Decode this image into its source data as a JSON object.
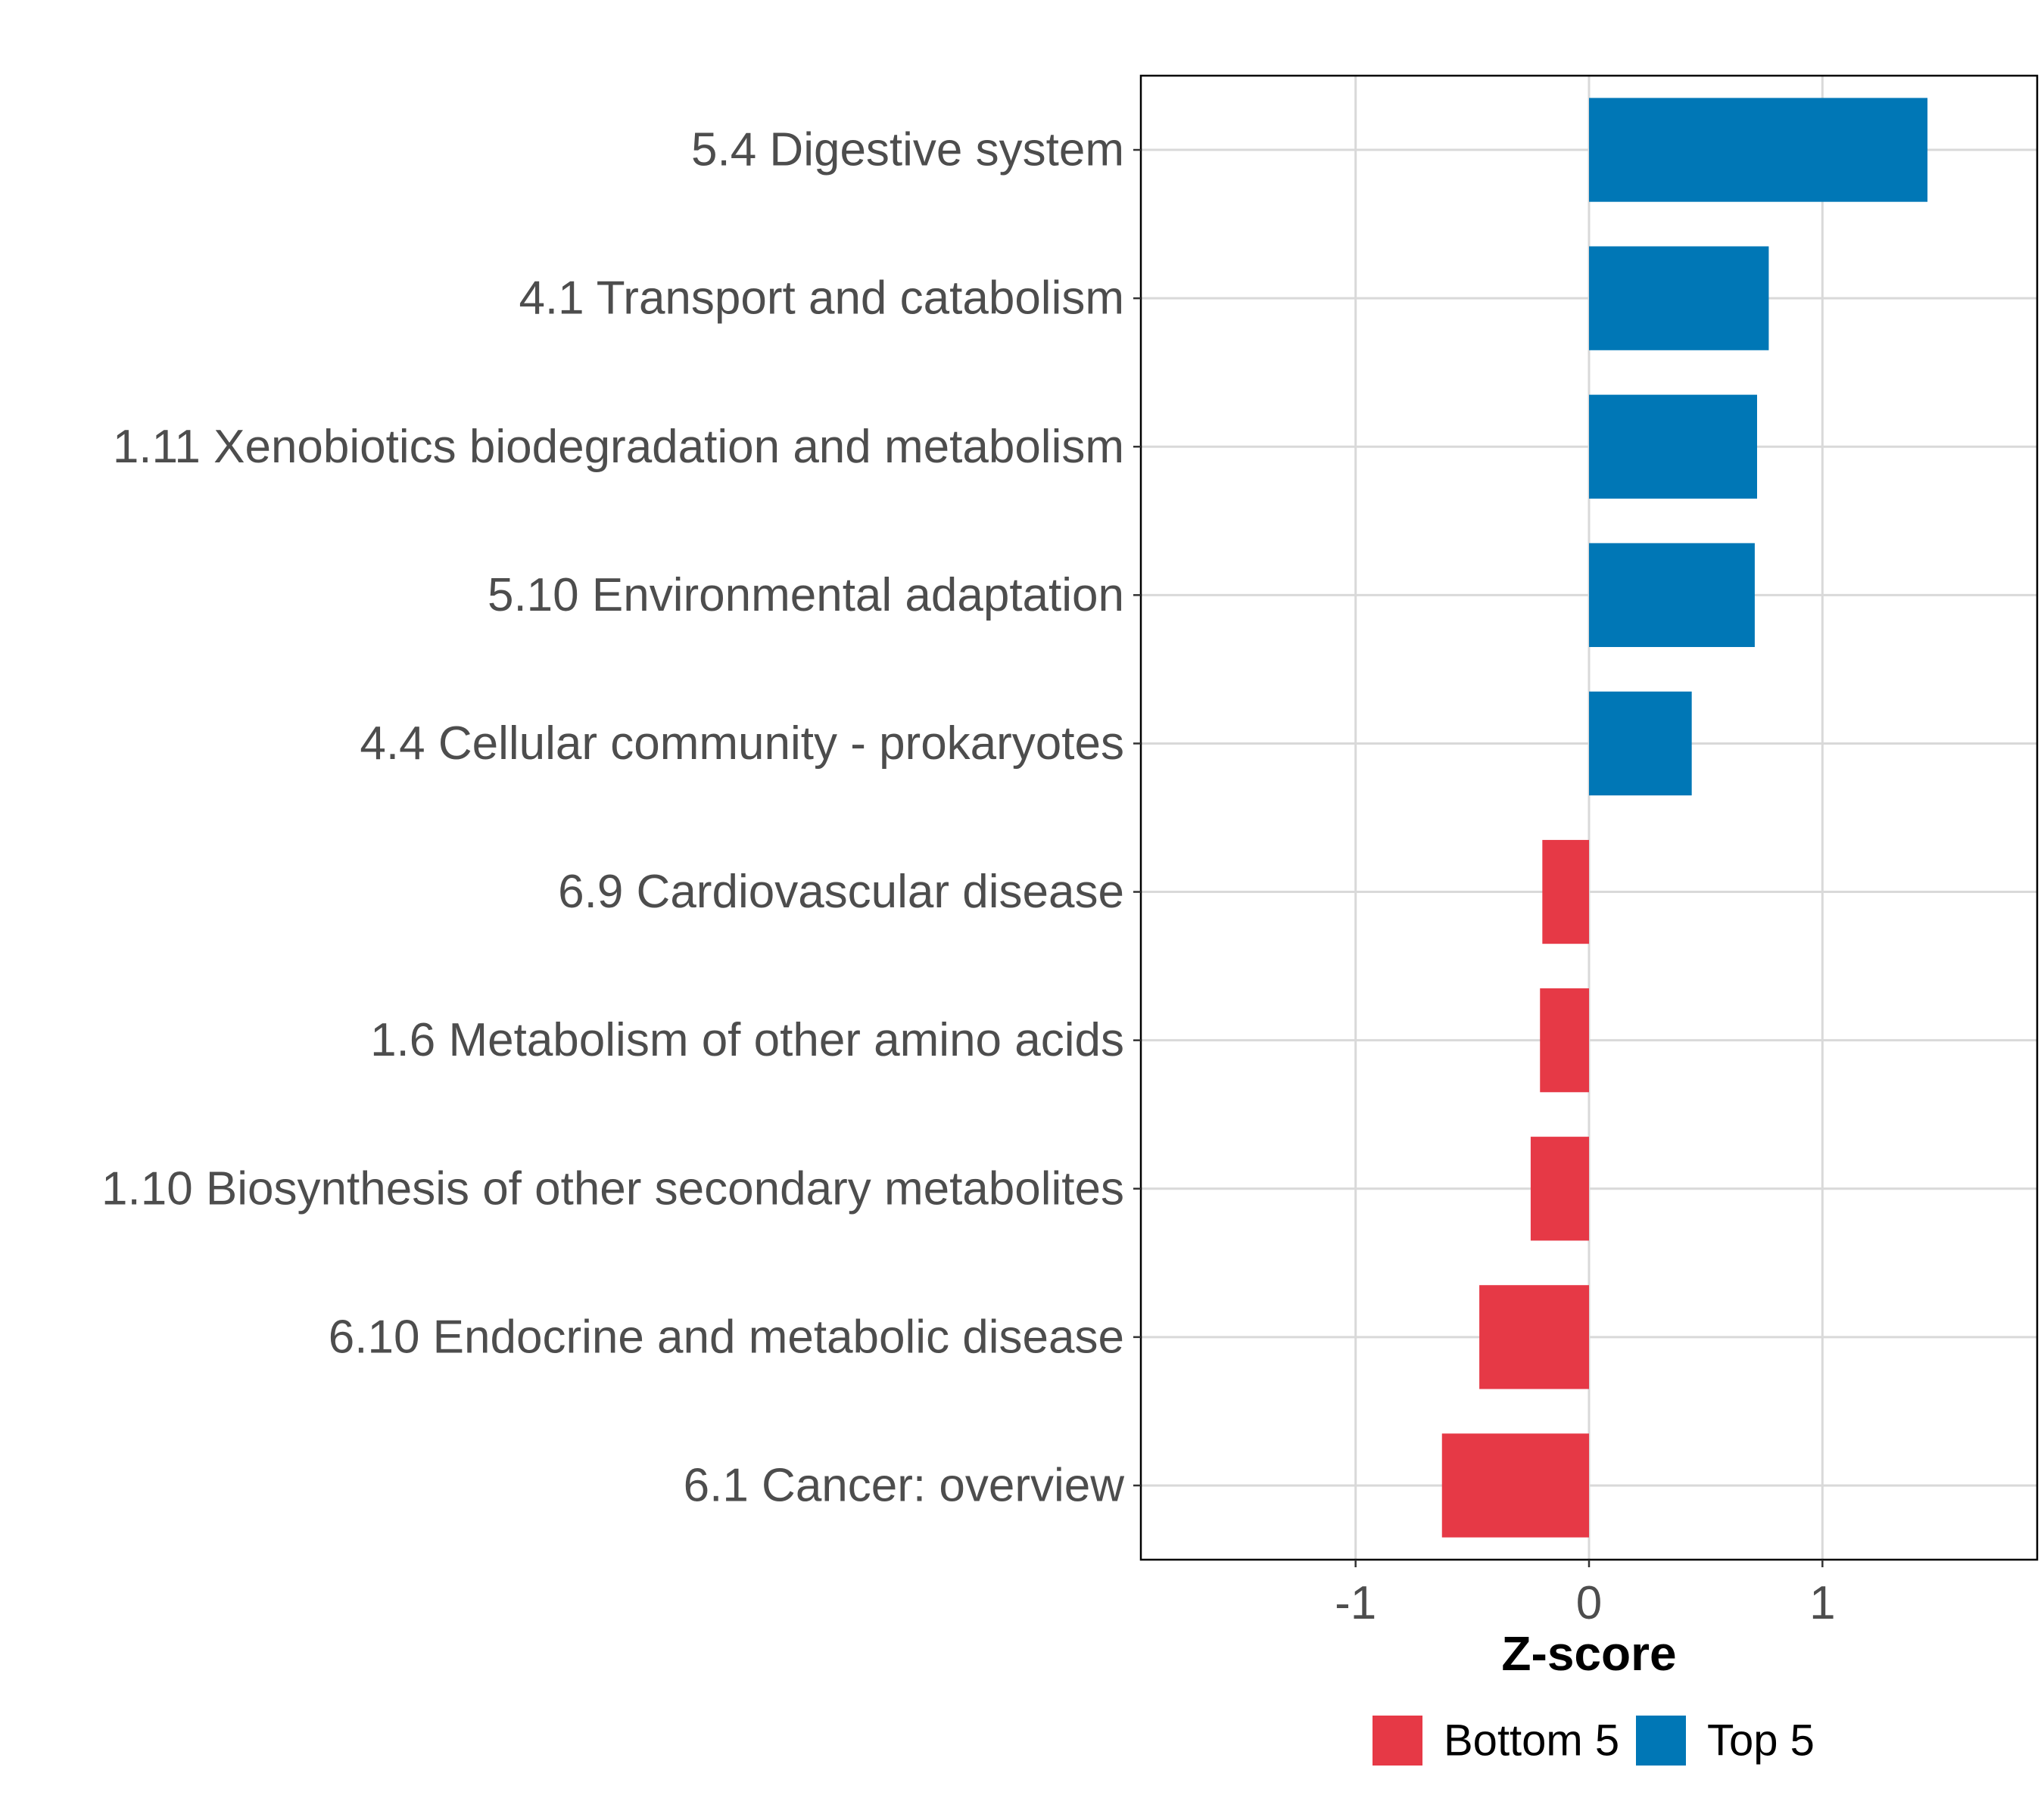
{
  "chart_data": {
    "type": "bar",
    "orientation": "horizontal",
    "title": "",
    "xlabel": "Z-score",
    "ylabel": "",
    "xlim": [
      -1.92,
      1.92
    ],
    "xticks": [
      -1,
      0,
      1
    ],
    "xtick_labels": [
      "-1",
      "0",
      "1"
    ],
    "grid": true,
    "categories": [
      "5.4 Digestive system",
      "4.1 Transport and catabolism",
      "1.11 Xenobiotics biodegradation and metabolism",
      "5.10 Environmental adaptation",
      "4.4 Cellular community - prokaryotes",
      "6.9 Cardiovascular disease",
      "1.6 Metabolism of other amino acids",
      "1.10 Biosynthesis of other secondary metabolites",
      "6.10 Endocrine and metabolic disease",
      "6.1 Cancer: overview"
    ],
    "values": [
      1.45,
      0.77,
      0.72,
      0.71,
      0.44,
      -0.2,
      -0.21,
      -0.25,
      -0.47,
      -0.63
    ],
    "groups": [
      "Top 5",
      "Top 5",
      "Top 5",
      "Top 5",
      "Top 5",
      "Bottom 5",
      "Bottom 5",
      "Bottom 5",
      "Bottom 5",
      "Bottom 5"
    ],
    "legend": {
      "placement": "bottom",
      "entries": [
        {
          "label": "Bottom 5",
          "color": "#E63946"
        },
        {
          "label": "Top 5",
          "color": "#0077B6"
        }
      ]
    },
    "colors": {
      "Top 5": "#0077B6",
      "Bottom 5": "#E63946"
    }
  }
}
